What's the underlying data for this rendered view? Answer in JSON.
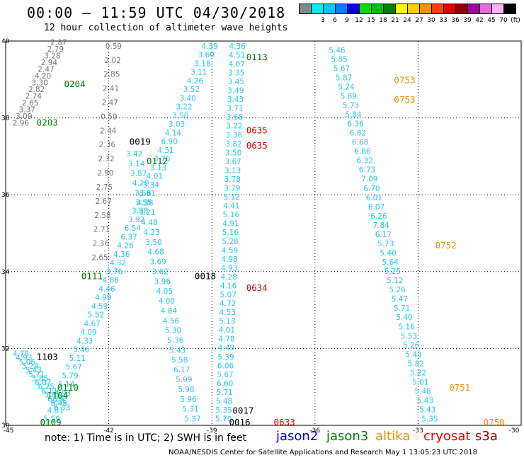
{
  "header": {
    "title": "00:00 – 11:59 UTC 04/30/2018",
    "subtitle": "12 hour collection of altimeter wave heights"
  },
  "legend": {
    "items": [
      {
        "label": "",
        "color": "#888888"
      },
      {
        "label": "3",
        "color": "#00f0f0"
      },
      {
        "label": "6",
        "color": "#00c8ff"
      },
      {
        "label": "9",
        "color": "#0080ff"
      },
      {
        "label": "12",
        "color": "#0000e0"
      },
      {
        "label": "15",
        "color": "#00e000"
      },
      {
        "label": "18",
        "color": "#00c000"
      },
      {
        "label": "21",
        "color": "#008000"
      },
      {
        "label": "24",
        "color": "#ffff00"
      },
      {
        "label": "27",
        "color": "#ffd000"
      },
      {
        "label": "30",
        "color": "#ff9000"
      },
      {
        "label": "33",
        "color": "#ff4000"
      },
      {
        "label": "36",
        "color": "#e00000"
      },
      {
        "label": "39",
        "color": "#900000"
      },
      {
        "label": "42",
        "color": "#a000a0"
      },
      {
        "label": "45",
        "color": "#e070e0"
      },
      {
        "label": "70",
        "color": "#ffb0ff"
      },
      {
        "label": "(ft)",
        "color": "#000000"
      }
    ]
  },
  "chart_data": {
    "type": "scatter",
    "lon_range": [
      -45,
      -30
    ],
    "lat_range": [
      30,
      40
    ],
    "x_ticks": [
      "-45",
      "-42",
      "-39",
      "-36",
      "-33",
      "-30"
    ],
    "y_ticks": [
      "30",
      "32",
      "34",
      "36",
      "38",
      "40"
    ],
    "grid": "dotted",
    "colors": {
      "gray": "#777777",
      "cyan": "#22c8ee",
      "green": "#008000",
      "orange": "#f09000",
      "red": "#e00000",
      "black": "#000000"
    },
    "tracks": [
      {
        "id": "t1",
        "color": "gray",
        "values": [
          "2.87",
          "2.79",
          "3.28",
          "2.94",
          "2.47",
          "4.20",
          "3.30",
          "2.82",
          "2.74",
          "2.65",
          "3.37",
          "3.09",
          "2.96"
        ],
        "lat_start": 39.9,
        "lat_end": 37.8,
        "lon_start": -43.7,
        "lon_end": -44.8
      },
      {
        "id": "t2",
        "color": "gray",
        "values": [
          "0.59",
          "2.02",
          "2.85",
          "2.41",
          "2.47",
          "0.59",
          "2.44",
          "2.36",
          "2.32",
          "2.90",
          "2.75",
          "2.67",
          "2.58",
          "2.71",
          "2.36",
          "2.65"
        ],
        "lat_start": 39.8,
        "lat_end": 34.3,
        "lon_start": -42.1,
        "lon_end": -42.5
      },
      {
        "id": "t3",
        "color": "cyan",
        "values": [
          "4.59",
          "3.60",
          "3.18",
          "3.11",
          "4.26",
          "3.52",
          "3.40",
          "3.22",
          "3.50",
          "3.03",
          "4.14",
          "6.90",
          "4.51",
          "3.76",
          "3.13",
          "4.01",
          "3.34",
          "3.81",
          "3.55",
          "3.88",
          "3.92",
          "6.54",
          "6.37",
          "4.26",
          "4.36",
          "4.32",
          "3.76",
          "4.88",
          "4.46",
          "4.99",
          "4.59",
          "5.52",
          "4.67",
          "4.09",
          "4.33",
          "5.46",
          "5.11",
          "5.67",
          "5.79",
          "5.14",
          "4.93",
          "4.55",
          "4.81",
          "5.59"
        ],
        "lat_start": 39.8,
        "lat_end": 30.1,
        "lon_start": -39.3,
        "lon_end": -43.9
      },
      {
        "id": "t4",
        "color": "cyan",
        "values": [
          "4.36",
          "4.51",
          "4.07",
          "3.35",
          "3.45",
          "3.49",
          "3.43",
          "3.71",
          "3.68",
          "3.22",
          "3.36",
          "3.82",
          "3.50",
          "3.67",
          "3.13",
          "3.78",
          "3.79",
          "5.12",
          "4.41",
          "5.16",
          "4.91",
          "5.16",
          "5.28",
          "4.59",
          "4.98",
          "4.93",
          "4.28",
          "4.16",
          "5.07",
          "4.72",
          "4.53",
          "5.13",
          "4.01",
          "4.78",
          "4.49",
          "5.39",
          "6.06",
          "5.67",
          "6.60",
          "5.71",
          "5.48",
          "5.35",
          "5.70"
        ],
        "lat_start": 39.8,
        "lat_end": 30.1,
        "lon_start": -38.5,
        "lon_end": -38.9
      },
      {
        "id": "t5",
        "color": "cyan",
        "values": [
          "3.42",
          "3.14",
          "3.87",
          "4.20",
          "3.56",
          "4.38",
          "3.21",
          "4.48",
          "4.23",
          "3.50",
          "4.68",
          "3.69",
          "3.62",
          "3.96",
          "4.05",
          "4.00",
          "4.84",
          "4.56",
          "5.30",
          "5.36",
          "5.43",
          "5.58",
          "6.17",
          "5.99",
          "5.98",
          "5.96",
          "5.31",
          "5.37"
        ],
        "lat_start": 37.0,
        "lat_end": 30.1,
        "lon_start": -41.5,
        "lon_end": -39.8
      },
      {
        "id": "t6",
        "color": "cyan",
        "values": [
          "5.46",
          "5.85",
          "5.67",
          "5.87",
          "5.24",
          "5.69",
          "5.73",
          "5.84",
          "6.36",
          "6.82",
          "6.68",
          "6.86",
          "6.32",
          "6.73",
          "7.09",
          "6.70",
          "6.01",
          "6.07",
          "6.26",
          "7.84",
          "6.17",
          "5.73",
          "5.40",
          "5.64",
          "5.25",
          "5.12",
          "5.26",
          "5.47",
          "5.71",
          "5.40",
          "5.16",
          "5.53",
          "5.26",
          "5.43",
          "5.82",
          "5.22",
          "5.01",
          "5.48",
          "5.43",
          "5.43",
          "5.35"
        ],
        "lat_start": 39.7,
        "lat_end": 30.1,
        "lon_start": -35.6,
        "lon_end": -32.9
      },
      {
        "id": "t7",
        "color": "cyan",
        "values": [
          "4.78",
          "4.93",
          "5.06",
          "5.24",
          "5.43",
          "5.71",
          "5.85",
          "6.07",
          "6.25",
          "6.11",
          "5.87",
          "6.29",
          "6.45",
          "6.33"
        ],
        "lat_start": 31.8,
        "lat_end": 30.4,
        "lon_start": -44.8,
        "lon_end": -43.6
      }
    ],
    "labels": [
      {
        "text": "0113",
        "color": "green",
        "lon": -38.0,
        "lat": 39.5
      },
      {
        "text": "0204",
        "color": "green",
        "lon": -43.3,
        "lat": 38.8
      },
      {
        "text": "0203",
        "color": "green",
        "lon": -44.1,
        "lat": 37.8
      },
      {
        "text": "0019",
        "color": "black",
        "lon": -41.4,
        "lat": 37.3
      },
      {
        "text": "0112",
        "color": "green",
        "lon": -40.9,
        "lat": 36.8
      },
      {
        "text": "0635",
        "color": "red",
        "lon": -38.0,
        "lat": 37.6
      },
      {
        "text": "0635",
        "color": "red",
        "lon": -38.0,
        "lat": 37.2
      },
      {
        "text": "0753",
        "color": "orange",
        "lon": -33.7,
        "lat": 38.9
      },
      {
        "text": "0753",
        "color": "orange",
        "lon": -33.7,
        "lat": 38.4
      },
      {
        "text": "0752",
        "color": "orange",
        "lon": -32.5,
        "lat": 34.6
      },
      {
        "text": "0111",
        "color": "green",
        "lon": -42.8,
        "lat": 33.8
      },
      {
        "text": "0018",
        "color": "black",
        "lon": -39.5,
        "lat": 33.8
      },
      {
        "text": "0634",
        "color": "red",
        "lon": -38.0,
        "lat": 33.5
      },
      {
        "text": "1103",
        "color": "black",
        "lon": -44.1,
        "lat": 31.7
      },
      {
        "text": "0110",
        "color": "green",
        "lon": -43.5,
        "lat": 30.9
      },
      {
        "text": "1104",
        "color": "green",
        "lon": -43.8,
        "lat": 30.7
      },
      {
        "text": "0751",
        "color": "orange",
        "lon": -32.1,
        "lat": 30.9
      },
      {
        "text": "0109",
        "color": "green",
        "lon": -44.0,
        "lat": 30.0
      },
      {
        "text": "0017",
        "color": "black",
        "lon": -38.4,
        "lat": 30.3
      },
      {
        "text": "0016",
        "color": "black",
        "lon": -38.5,
        "lat": 30.0
      },
      {
        "text": "0633",
        "color": "red",
        "lon": -37.2,
        "lat": 30.0
      },
      {
        "text": "0750",
        "color": "orange",
        "lon": -31.1,
        "lat": 30.0
      }
    ]
  },
  "note": "note:  1) Time is in UTC; 2) SWH is in feet",
  "satellites": [
    {
      "name": "jason2",
      "color": "#0000e0"
    },
    {
      "name": "jason3",
      "color": "#008000"
    },
    {
      "name": "altika",
      "color": "#f09000"
    },
    {
      "name": "cryosat",
      "color": "#e00000"
    },
    {
      "name": "s3a",
      "color": "#900000"
    }
  ],
  "footer": "NOAA/NESDIS Center for Satellite Applications and Research     May  1 13:05:23 UTC 2018"
}
